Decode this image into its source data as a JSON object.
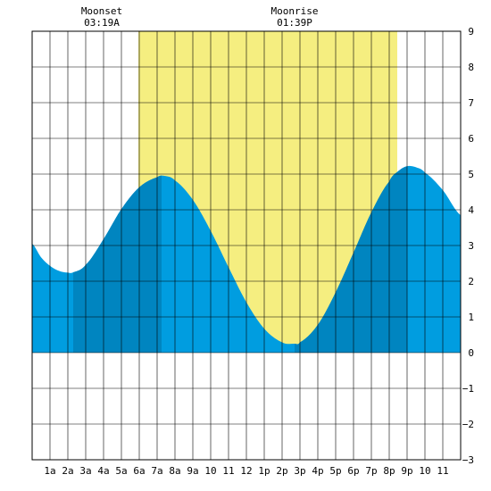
{
  "chart_data": {
    "type": "area",
    "xlim": [
      0,
      24
    ],
    "ylim": [
      -3,
      9
    ],
    "grid": true,
    "daylight": {
      "start": 5.95,
      "end": 20.45,
      "color": "#f5ee80"
    },
    "colors": {
      "tide_light": "#009de0",
      "tide_dark": "#0085c0",
      "grid": "#000000"
    },
    "x_ticks": [
      {
        "x": 1,
        "label": "1a"
      },
      {
        "x": 2,
        "label": "2a"
      },
      {
        "x": 3,
        "label": "3a"
      },
      {
        "x": 4,
        "label": "4a"
      },
      {
        "x": 5,
        "label": "5a"
      },
      {
        "x": 6,
        "label": "6a"
      },
      {
        "x": 7,
        "label": "7a"
      },
      {
        "x": 8,
        "label": "8a"
      },
      {
        "x": 9,
        "label": "9a"
      },
      {
        "x": 10,
        "label": "10"
      },
      {
        "x": 11,
        "label": "11"
      },
      {
        "x": 12,
        "label": "12"
      },
      {
        "x": 13,
        "label": "1p"
      },
      {
        "x": 14,
        "label": "2p"
      },
      {
        "x": 15,
        "label": "3p"
      },
      {
        "x": 16,
        "label": "4p"
      },
      {
        "x": 17,
        "label": "5p"
      },
      {
        "x": 18,
        "label": "6p"
      },
      {
        "x": 19,
        "label": "7p"
      },
      {
        "x": 20,
        "label": "8p"
      },
      {
        "x": 21,
        "label": "9p"
      },
      {
        "x": 22,
        "label": "10"
      },
      {
        "x": 23,
        "label": "11"
      }
    ],
    "y_ticks": [
      {
        "y": 9,
        "label": "9"
      },
      {
        "y": 8,
        "label": "8"
      },
      {
        "y": 7,
        "label": "7"
      },
      {
        "y": 6,
        "label": "6"
      },
      {
        "y": 5,
        "label": "5"
      },
      {
        "y": 4,
        "label": "4"
      },
      {
        "y": 3,
        "label": "3"
      },
      {
        "y": 2,
        "label": "2"
      },
      {
        "y": 1,
        "label": "1"
      },
      {
        "y": 0,
        "label": "0"
      },
      {
        "y": -1,
        "label": "−1"
      },
      {
        "y": -2,
        "label": "−2"
      },
      {
        "y": -3,
        "label": "−3"
      }
    ],
    "events": [
      {
        "x": 4.0,
        "name": "Moonset",
        "time": "03:19A"
      },
      {
        "x": 14.8,
        "name": "Moonrise",
        "time": "01:39P"
      }
    ],
    "dark_bands": [
      [
        2.3,
        7.25
      ],
      [
        14.7,
        21.0
      ]
    ],
    "tide": {
      "x": [
        0,
        0.5,
        1,
        1.5,
        2,
        2.3,
        3,
        4,
        5,
        6,
        7,
        7.4,
        8,
        9,
        10,
        11,
        12,
        13,
        14,
        14.7,
        15,
        16,
        17,
        18,
        19,
        20,
        20.5,
        21,
        21.5,
        22,
        23,
        24
      ],
      "y": [
        3.05,
        2.67,
        2.43,
        2.29,
        2.24,
        2.25,
        2.46,
        3.18,
        4.02,
        4.63,
        4.91,
        4.95,
        4.82,
        4.28,
        3.41,
        2.39,
        1.41,
        0.67,
        0.29,
        0.25,
        0.29,
        0.78,
        1.69,
        2.8,
        3.93,
        4.79,
        5.08,
        5.22,
        5.19,
        5.04,
        4.55,
        3.85
      ]
    }
  }
}
